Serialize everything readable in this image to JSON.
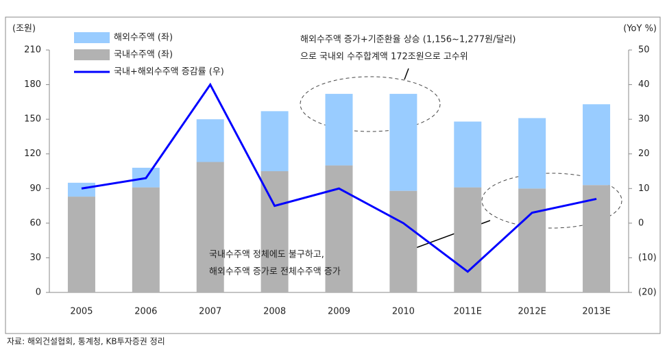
{
  "chart_data": {
    "type": "bar",
    "y_label": "(조원)",
    "y2_label": "(YoY %)",
    "categories": [
      "2005",
      "2006",
      "2007",
      "2008",
      "2009",
      "2010",
      "2011E",
      "2012E",
      "2013E"
    ],
    "series": [
      {
        "name": "국내수주액 (좌)",
        "color": "#b2b2b2",
        "values": [
          83,
          91,
          113,
          105,
          110,
          88,
          91,
          90,
          93
        ]
      },
      {
        "name": "해외수주액 (좌)",
        "color": "#99ccff",
        "values": [
          12,
          17,
          37,
          52,
          62,
          84,
          57,
          61,
          70
        ]
      },
      {
        "name": "국내+해외수주액 증감률 (우)",
        "color": "#0000ff",
        "type": "line",
        "axis": "y2",
        "values": [
          10,
          13,
          40,
          5,
          10,
          0,
          -14,
          3,
          7
        ]
      }
    ],
    "ylim": [
      0,
      210
    ],
    "yticks": [
      0,
      30,
      60,
      90,
      120,
      150,
      180,
      210
    ],
    "y2lim": [
      -20,
      50
    ],
    "y2ticks": [
      {
        "value": -20,
        "label": "(20)"
      },
      {
        "value": -10,
        "label": "(10)"
      },
      0,
      10,
      20,
      30,
      40,
      50
    ],
    "annotations": [
      [
        "해외수주액 증가+기준환율 상승 (1,156~1,277원/달러)",
        "으로 국내외 수주합계액 172조원으로 고수위"
      ],
      [
        "국내수주액 정체에도 불구하고,",
        "해외수주액 증가로 전체수주액 증가"
      ]
    ],
    "source": "자료: 해외건설협회, 통계청, KB투자증권 정리"
  }
}
